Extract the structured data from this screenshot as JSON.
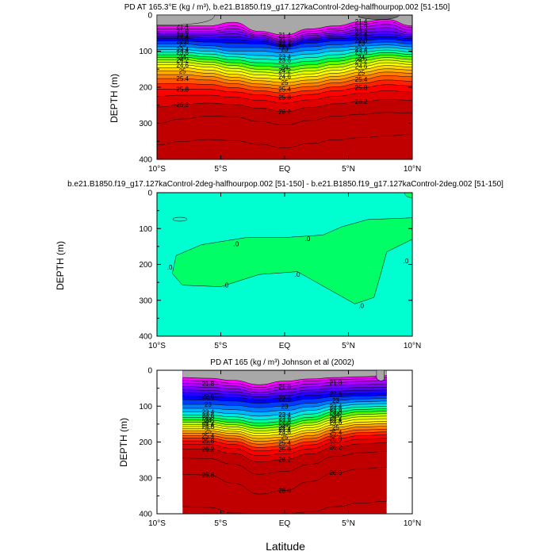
{
  "colors": {
    "band_scale": [
      "#a8a8a8",
      "#ff00ff",
      "#d400ff",
      "#aa00ff",
      "#7d00ff",
      "#5000ff",
      "#2800ff",
      "#0000ff",
      "#003cff",
      "#0078ff",
      "#00b4ff",
      "#00e6e6",
      "#00ff9a",
      "#00ff3c",
      "#60ff00",
      "#b4ff00",
      "#e6ff00",
      "#ffff00",
      "#ffd400",
      "#ffaa00",
      "#ff8000",
      "#ff5500",
      "#ff2000",
      "#ff0000",
      "#e00000",
      "#c00000"
    ],
    "diff_background": "#00ffd0",
    "diff_positive": "#00ff66"
  },
  "chart_data": [
    {
      "type": "contour",
      "title": "PD AT 165.3°E (kg / m³), b.e21.B1850.f19_g17.127kaControl-2deg-halfhourpop.002 [51-150]",
      "xlabel": "",
      "ylabel": "DEPTH (m)",
      "xlim": [
        -10,
        10
      ],
      "ylim": [
        0,
        400
      ],
      "x_ticks": [
        "10°S",
        "5°S",
        "EQ",
        "5°N",
        "10°N"
      ],
      "y_ticks": [
        "0",
        "100",
        "200",
        "300",
        "400"
      ],
      "isopycnals": [
        {
          "value": 21.4,
          "label": "21.4",
          "depth": [
            30,
            30,
            30,
            20,
            45,
            55,
            38,
            30,
            18,
            12,
            30
          ]
        },
        {
          "value": 21.6,
          "label": "",
          "depth": [
            38,
            38,
            38,
            30,
            50,
            62,
            45,
            38,
            25,
            18,
            35
          ]
        },
        {
          "value": 21.8,
          "label": "21.8",
          "depth": [
            45,
            45,
            45,
            38,
            55,
            68,
            52,
            44,
            32,
            26,
            42
          ]
        },
        {
          "value": 22.0,
          "label": "",
          "depth": [
            50,
            50,
            50,
            45,
            58,
            72,
            57,
            50,
            40,
            35,
            50
          ]
        },
        {
          "value": 22.2,
          "label": "22.2",
          "depth": [
            55,
            55,
            55,
            52,
            62,
            76,
            62,
            55,
            48,
            45,
            55
          ]
        },
        {
          "value": 22.4,
          "label": "22.4",
          "depth": [
            60,
            60,
            62,
            60,
            67,
            80,
            66,
            60,
            56,
            53,
            60
          ]
        },
        {
          "value": 22.6,
          "label": "",
          "depth": [
            65,
            65,
            68,
            68,
            72,
            84,
            70,
            65,
            62,
            60,
            65
          ]
        },
        {
          "value": 22.8,
          "label": "22.8",
          "depth": [
            72,
            72,
            75,
            78,
            80,
            88,
            78,
            72,
            70,
            67,
            72
          ]
        },
        {
          "value": 23.0,
          "label": "23",
          "depth": [
            80,
            80,
            85,
            90,
            90,
            95,
            88,
            82,
            78,
            75,
            80
          ]
        },
        {
          "value": 23.2,
          "label": "",
          "depth": [
            88,
            88,
            92,
            100,
            100,
            105,
            98,
            90,
            86,
            83,
            88
          ]
        },
        {
          "value": 23.4,
          "label": "23.4",
          "depth": [
            96,
            96,
            100,
            108,
            112,
            115,
            108,
            100,
            94,
            90,
            95
          ]
        },
        {
          "value": 23.6,
          "label": "23.6",
          "depth": [
            103,
            103,
            108,
            116,
            122,
            125,
            118,
            110,
            102,
            97,
            102
          ]
        },
        {
          "value": 23.8,
          "label": "",
          "depth": [
            110,
            110,
            116,
            124,
            132,
            135,
            128,
            119,
            110,
            104,
            109
          ]
        },
        {
          "value": 24.0,
          "label": "24",
          "depth": [
            117,
            117,
            123,
            132,
            141,
            145,
            138,
            128,
            118,
            111,
            116
          ]
        },
        {
          "value": 24.2,
          "label": "24.2",
          "depth": [
            124,
            124,
            130,
            140,
            150,
            154,
            147,
            137,
            126,
            118,
            123
          ]
        },
        {
          "value": 24.4,
          "label": "",
          "depth": [
            131,
            131,
            137,
            148,
            158,
            162,
            155,
            145,
            134,
            125,
            130
          ]
        },
        {
          "value": 24.6,
          "label": "24.6",
          "depth": [
            138,
            138,
            144,
            156,
            166,
            170,
            163,
            153,
            142,
            132,
            137
          ]
        },
        {
          "value": 24.8,
          "label": "",
          "depth": [
            146,
            146,
            152,
            164,
            174,
            178,
            171,
            161,
            150,
            140,
            144
          ]
        },
        {
          "value": 25.0,
          "label": "25",
          "depth": [
            155,
            155,
            161,
            172,
            182,
            187,
            180,
            170,
            159,
            149,
            152
          ]
        },
        {
          "value": 25.2,
          "label": "",
          "depth": [
            165,
            165,
            170,
            181,
            191,
            196,
            189,
            179,
            168,
            158,
            161
          ]
        },
        {
          "value": 25.4,
          "label": "25.4",
          "depth": [
            176,
            176,
            180,
            190,
            200,
            205,
            198,
            188,
            178,
            168,
            171
          ]
        },
        {
          "value": 25.6,
          "label": "",
          "depth": [
            190,
            190,
            192,
            201,
            210,
            216,
            209,
            199,
            189,
            180,
            183
          ]
        },
        {
          "value": 25.8,
          "label": "25.8",
          "depth": [
            205,
            205,
            206,
            213,
            221,
            228,
            220,
            210,
            201,
            193,
            196
          ]
        },
        {
          "value": 26.0,
          "label": "",
          "depth": [
            225,
            222,
            222,
            228,
            236,
            244,
            235,
            225,
            217,
            210,
            213
          ]
        },
        {
          "value": 26.2,
          "label": "26.2",
          "depth": [
            255,
            248,
            244,
            248,
            258,
            268,
            256,
            246,
            240,
            234,
            236
          ]
        },
        {
          "value": 26.4,
          "label": "",
          "depth": [
            300,
            288,
            280,
            282,
            295,
            305,
            292,
            280,
            275,
            270,
            272
          ]
        },
        {
          "value": 26.6,
          "label": "",
          "depth": [
            360,
            350,
            345,
            348,
            358,
            368,
            356,
            346,
            340,
            335,
            330
          ]
        }
      ]
    },
    {
      "type": "contour",
      "title": "b.e21.B1850.f19_g17.127kaControl-2deg-halfhourpop.002 [51-150] - b.e21.B1850.f19_g17.127kaControl-2deg.002 [51-150]",
      "xlabel": "",
      "ylabel": "DEPTH (m)",
      "xlim": [
        -10,
        10
      ],
      "ylim": [
        0,
        400
      ],
      "x_ticks": [
        "10°S",
        "5°S",
        "EQ",
        "5°N",
        "10°N"
      ],
      "y_ticks": [
        "0",
        "100",
        "200",
        "300",
        "400"
      ],
      "contour_labels": [
        ".0",
        ".0",
        ".0",
        ".0",
        ".0",
        ".0",
        ".0",
        ".0"
      ]
    },
    {
      "type": "contour",
      "title": "PD AT 165 (kg / m³) Johnson et al (2002)",
      "xlabel": "Latitude",
      "ylabel": "DEPTH (m)",
      "xlim": [
        -10,
        10
      ],
      "ylim": [
        0,
        400
      ],
      "data_lat_range": [
        -8,
        8
      ],
      "x_ticks": [
        "10°S",
        "5°S",
        "EQ",
        "5°N",
        "10°N"
      ],
      "y_ticks": [
        "0",
        "100",
        "200",
        "300",
        "400"
      ],
      "isopycnals": [
        {
          "value": 21.4,
          "label": "",
          "depth": [
            20,
            22,
            28,
            40,
            30,
            24,
            20,
            18,
            15
          ]
        },
        {
          "value": 21.6,
          "label": "",
          "depth": [
            28,
            30,
            36,
            48,
            38,
            30,
            26,
            24,
            20
          ]
        },
        {
          "value": 21.8,
          "label": "21.8",
          "depth": [
            36,
            38,
            44,
            55,
            46,
            38,
            34,
            31,
            28
          ]
        },
        {
          "value": 22.0,
          "label": "",
          "depth": [
            45,
            47,
            52,
            62,
            54,
            46,
            42,
            40,
            38
          ]
        },
        {
          "value": 22.2,
          "label": "",
          "depth": [
            54,
            56,
            60,
            68,
            62,
            55,
            50,
            48,
            47
          ]
        },
        {
          "value": 22.4,
          "label": "",
          "depth": [
            62,
            64,
            68,
            74,
            70,
            62,
            58,
            56,
            55
          ]
        },
        {
          "value": 22.6,
          "label": "22.6",
          "depth": [
            72,
            73,
            76,
            82,
            78,
            70,
            66,
            64,
            63
          ]
        },
        {
          "value": 22.8,
          "label": "",
          "depth": [
            82,
            83,
            86,
            92,
            88,
            80,
            74,
            72,
            70
          ]
        },
        {
          "value": 23.0,
          "label": "23",
          "depth": [
            95,
            95,
            98,
            104,
            100,
            92,
            84,
            80,
            78
          ]
        },
        {
          "value": 23.2,
          "label": "",
          "depth": [
            106,
            106,
            110,
            116,
            112,
            102,
            92,
            88,
            86
          ]
        },
        {
          "value": 23.4,
          "label": "23.4",
          "depth": [
            116,
            116,
            121,
            128,
            124,
            112,
            100,
            95,
            93
          ]
        },
        {
          "value": 23.6,
          "label": "23.6",
          "depth": [
            125,
            125,
            130,
            138,
            134,
            122,
            108,
            102,
            100
          ]
        },
        {
          "value": 23.8,
          "label": "23.8",
          "depth": [
            132,
            132,
            138,
            147,
            143,
            131,
            116,
            109,
            107
          ]
        },
        {
          "value": 24.0,
          "label": "24",
          "depth": [
            139,
            139,
            145,
            155,
            151,
            139,
            124,
            116,
            114
          ]
        },
        {
          "value": 24.2,
          "label": "24.2",
          "depth": [
            145,
            145,
            152,
            162,
            158,
            146,
            131,
            123,
            121
          ]
        },
        {
          "value": 24.4,
          "label": "24.4",
          "depth": [
            151,
            151,
            158,
            169,
            165,
            153,
            138,
            130,
            128
          ]
        },
        {
          "value": 24.6,
          "label": "24.6",
          "depth": [
            157,
            157,
            164,
            176,
            172,
            160,
            145,
            137,
            135
          ]
        },
        {
          "value": 24.8,
          "label": "",
          "depth": [
            163,
            163,
            170,
            183,
            179,
            167,
            152,
            144,
            142
          ]
        },
        {
          "value": 25.0,
          "label": "25",
          "depth": [
            169,
            169,
            176,
            190,
            186,
            174,
            159,
            151,
            149
          ]
        },
        {
          "value": 25.2,
          "label": "",
          "depth": [
            175,
            175,
            183,
            198,
            194,
            182,
            166,
            158,
            156
          ]
        },
        {
          "value": 25.4,
          "label": "25.4",
          "depth": [
            182,
            182,
            190,
            206,
            202,
            190,
            174,
            166,
            164
          ]
        },
        {
          "value": 25.6,
          "label": "",
          "depth": [
            189,
            189,
            198,
            215,
            211,
            199,
            182,
            174,
            172
          ]
        },
        {
          "value": 25.8,
          "label": "25.8",
          "depth": [
            197,
            197,
            207,
            225,
            221,
            208,
            191,
            182,
            180
          ]
        },
        {
          "value": 26.0,
          "label": "",
          "depth": [
            207,
            207,
            218,
            238,
            233,
            219,
            201,
            192,
            190
          ]
        },
        {
          "value": 26.2,
          "label": "26.2",
          "depth": [
            220,
            220,
            232,
            255,
            249,
            233,
            214,
            205,
            202
          ]
        },
        {
          "value": 26.4,
          "label": "",
          "depth": [
            245,
            246,
            262,
            290,
            282,
            262,
            240,
            230,
            226
          ]
        },
        {
          "value": 26.6,
          "label": "26.6",
          "depth": [
            290,
            292,
            315,
            345,
            335,
            310,
            285,
            275,
            270
          ]
        },
        {
          "value": 26.8,
          "label": "",
          "depth": [
            380,
            382,
            398,
            410,
            405,
            395,
            380,
            370,
            365
          ]
        }
      ]
    }
  ]
}
